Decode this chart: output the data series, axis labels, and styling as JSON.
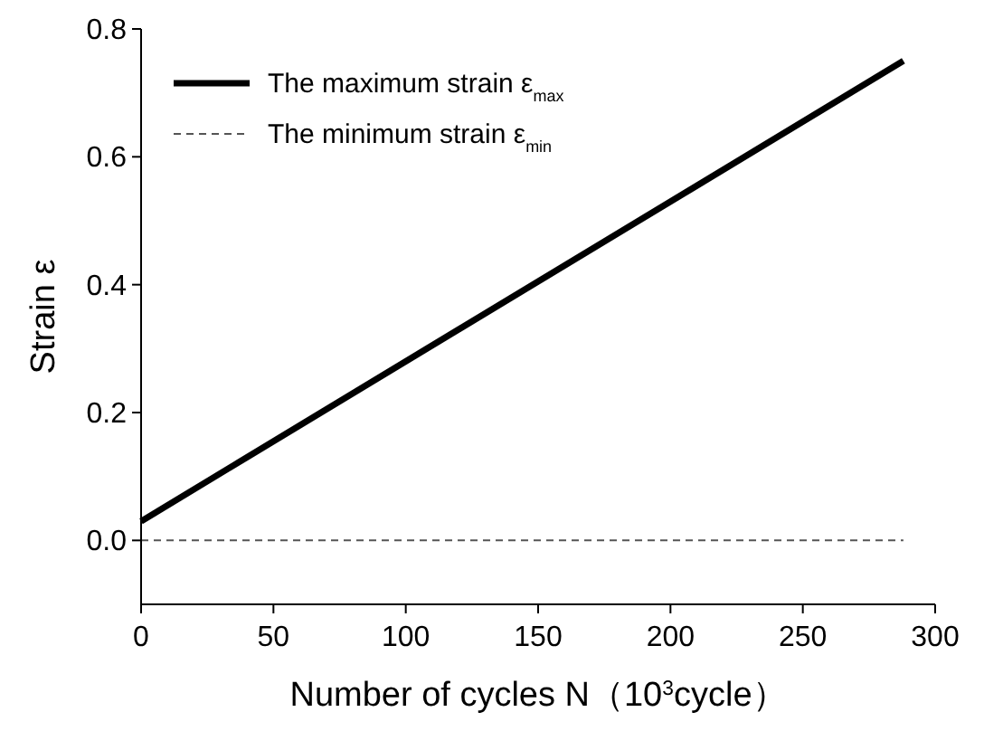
{
  "chart_data": {
    "type": "line",
    "xlabel": "Number of cycles  N（10$^{3}$cycle）",
    "ylabel": "Strain ε",
    "xlim": [
      0,
      300
    ],
    "xticks": [
      0,
      50,
      100,
      150,
      200,
      250,
      300
    ],
    "ylim": [
      -0.1,
      0.8
    ],
    "yticks": [
      {
        "value": 0,
        "label": "0.0"
      },
      0.2,
      0.4,
      0.6,
      0.8
    ],
    "grid": false,
    "legend": "top left",
    "x": [
      0,
      288
    ],
    "series": [
      {
        "name": "The maximum strain ε$_{max}$",
        "color": "#000000",
        "line_style": "solid",
        "values": [
          0.03,
          0.75
        ]
      },
      {
        "name": "The minimum strain ε$_{min}$",
        "color": "#555555",
        "line_style": "dashed",
        "values": [
          0,
          0
        ]
      }
    ]
  }
}
